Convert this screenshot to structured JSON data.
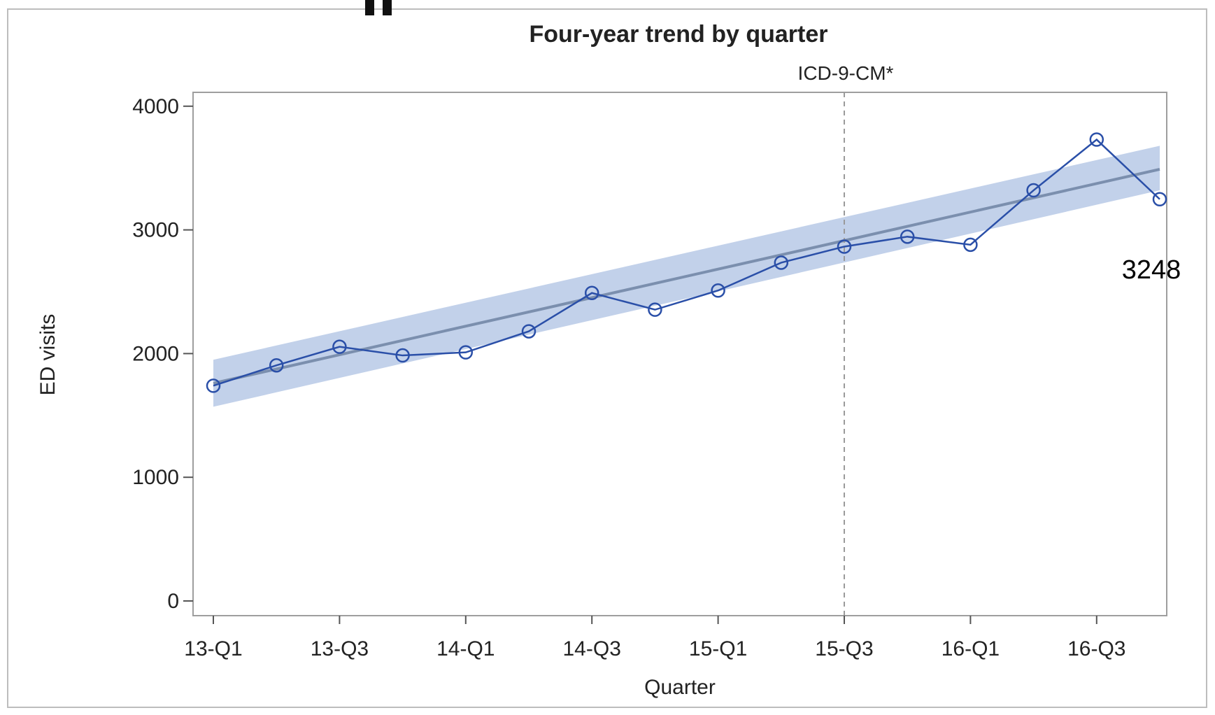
{
  "chart_data": {
    "type": "line",
    "title": "Four-year trend by quarter",
    "xlabel": "Quarter",
    "ylabel": "ED visits",
    "ylim": [
      0,
      4000
    ],
    "yticks": [
      0,
      1000,
      2000,
      3000,
      4000
    ],
    "categories": [
      "13-Q1",
      "13-Q2",
      "13-Q3",
      "13-Q4",
      "14-Q1",
      "14-Q2",
      "14-Q3",
      "14-Q4",
      "15-Q1",
      "15-Q2",
      "15-Q3",
      "15-Q4",
      "16-Q1",
      "16-Q2",
      "16-Q3",
      "16-Q4"
    ],
    "xtick_labels": [
      "13-Q1",
      "13-Q3",
      "14-Q1",
      "14-Q3",
      "15-Q1",
      "15-Q3",
      "16-Q1",
      "16-Q3"
    ],
    "series": [
      {
        "type": "line-markers",
        "color": "#2a4fa8",
        "values": [
          1740,
          1905,
          2055,
          1985,
          2010,
          2180,
          2490,
          2355,
          2510,
          2735,
          2865,
          2945,
          2880,
          3320,
          3730,
          3248
        ]
      },
      {
        "type": "trend",
        "color": "#7b8fae",
        "start": 1760,
        "end": 3490
      }
    ],
    "confidence_band": {
      "color": "#b7c9e6",
      "lower": [
        1570,
        3320
      ],
      "upper": [
        1950,
        3680
      ]
    },
    "reference_line": {
      "category": "15-Q3",
      "label": "ICD-9-CM*",
      "style": "dashed"
    },
    "annotations": [
      {
        "category": "16-Q4",
        "text": "3248"
      }
    ],
    "grid": false,
    "legend": "none"
  }
}
